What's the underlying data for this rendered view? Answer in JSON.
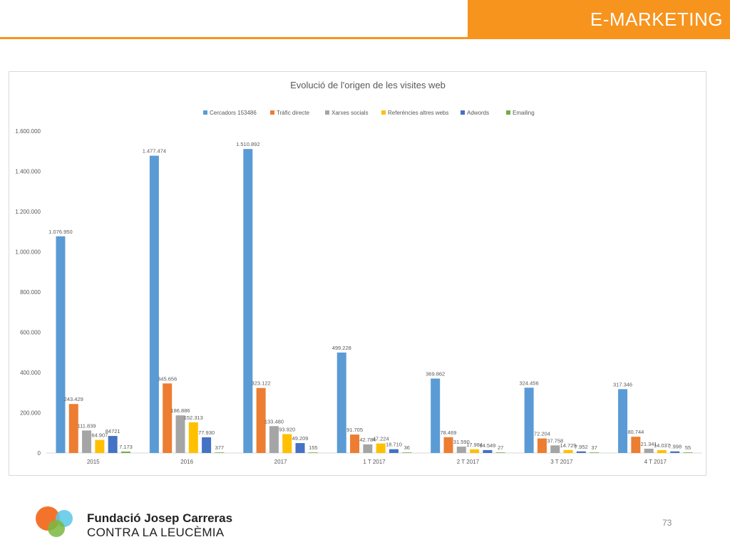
{
  "header": {
    "title": "E-MARKETING"
  },
  "footer": {
    "org_name": "Fundació Josep Carreras",
    "org_sub": "CONTRA LA LEUCÈMIA",
    "page_number": "73"
  },
  "colors": {
    "accent": "#f7941d",
    "logo_orange": "#f26b21",
    "logo_cyan": "#5bc8e8",
    "logo_green": "#7ab840"
  },
  "chart_data": {
    "type": "bar",
    "title": "Evolució de l'origen de les visites web",
    "xlabel": "",
    "ylabel": "",
    "ylim": [
      0,
      1600000
    ],
    "yticks": [
      0,
      200000,
      400000,
      600000,
      800000,
      1000000,
      1200000,
      1400000,
      1600000
    ],
    "ytick_labels": [
      "0",
      "200.000",
      "400.000",
      "600.000",
      "800.000",
      "1.000.000",
      "1.200.000",
      "1.400.000",
      "1.600.000"
    ],
    "grid": false,
    "legend_position": "top",
    "categories": [
      "2015",
      "2016",
      "2017",
      "1 T 2017",
      "2 T 2017",
      "3 T 2017",
      "4 T 2017"
    ],
    "series": [
      {
        "name": "Cercadors 153486",
        "color": "#5b9bd5",
        "values": [
          1076950,
          1477474,
          1510892,
          499228,
          369862,
          324456,
          317346
        ],
        "labels": [
          "1.076.950",
          "1.477.474",
          "1.510.892",
          "499.228",
          "369.862",
          "324.456",
          "317.346"
        ]
      },
      {
        "name": "Tràfic directe",
        "color": "#ed7d31",
        "values": [
          243429,
          345656,
          323122,
          91705,
          78469,
          72204,
          80744
        ],
        "labels": [
          "243.429",
          "345.656",
          "323.122",
          "91.705",
          "78.469",
          "72.204",
          "80.744"
        ]
      },
      {
        "name": "Xarxes socials",
        "color": "#a5a5a5",
        "values": [
          111839,
          186886,
          133480,
          42784,
          31590,
          37758,
          21341
        ],
        "labels": [
          "111.839",
          "186.886",
          "133.480",
          "42.784",
          "31.590",
          "37.758",
          "21.341"
        ]
      },
      {
        "name": "Referències altres webs",
        "color": "#ffc000",
        "values": [
          64907,
          152313,
          93920,
          47224,
          17984,
          14729,
          14037
        ],
        "labels": [
          "64.907",
          "152.313",
          "93.920",
          "47.224",
          "17.984",
          "14.729",
          "14.037"
        ]
      },
      {
        "name": "Adwords",
        "color": "#4472c4",
        "values": [
          84721,
          77930,
          49209,
          18710,
          14549,
          7952,
          7998
        ],
        "labels": [
          "84721",
          "77.930",
          "49.209",
          "18.710",
          "14.549",
          "7.952",
          "7.998"
        ]
      },
      {
        "name": "Emailing",
        "color": "#70ad47",
        "values": [
          7173,
          377,
          155,
          36,
          27,
          37,
          55
        ],
        "labels": [
          "7.173",
          "377",
          "155",
          "36",
          "27",
          "37",
          "55"
        ]
      }
    ]
  }
}
